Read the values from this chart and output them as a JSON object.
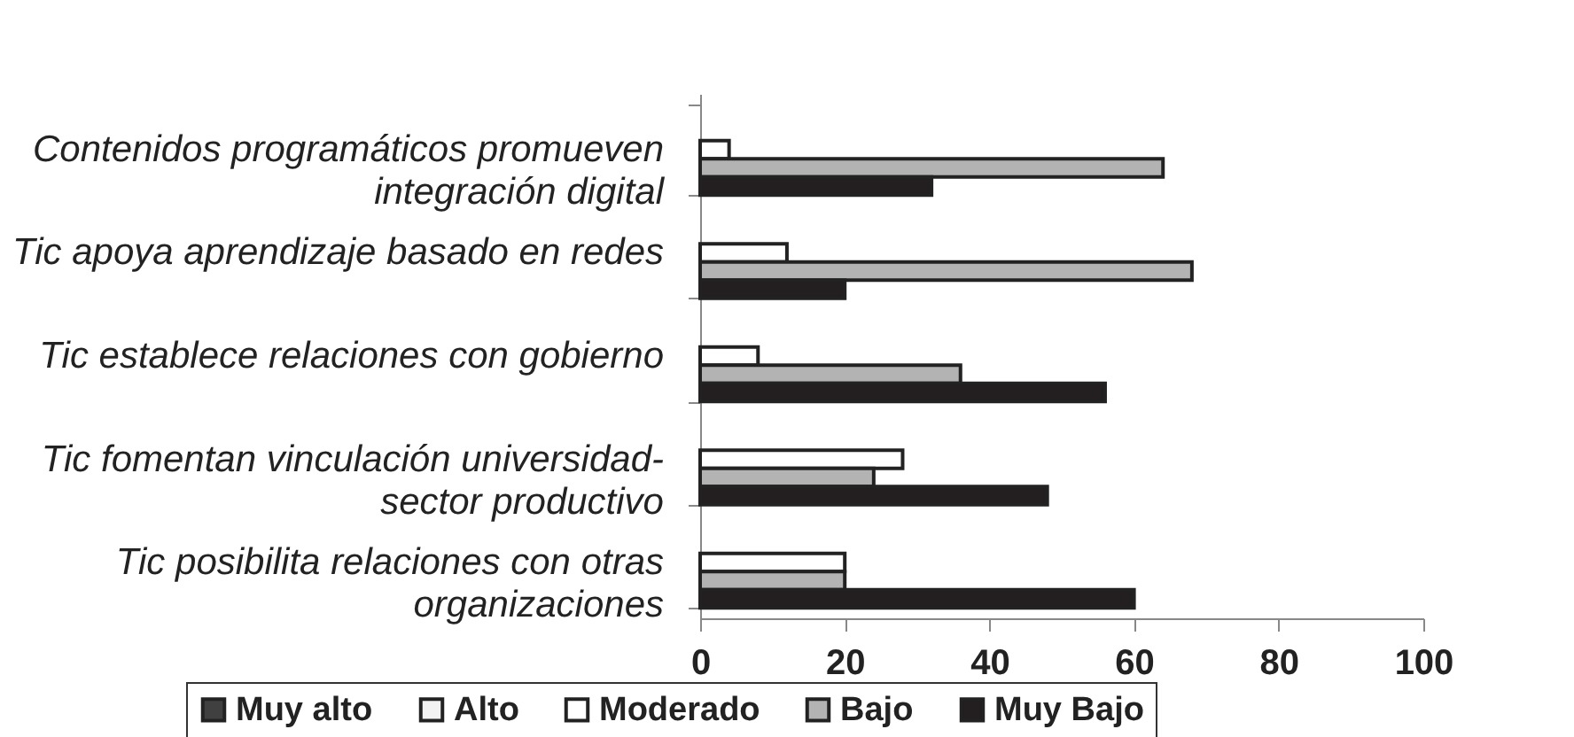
{
  "chart_data": {
    "type": "bar",
    "orientation": "horizontal",
    "categories": [
      "Contenidos programáticos promueven integración digital",
      "Tic apoya aprendizaje basado en redes",
      "Tic establece relaciones con gobierno",
      "Tic fomentan vinculación universidad-sector productivo",
      "Tic posibilita relaciones con otras organizaciones"
    ],
    "series": [
      {
        "name": "Muy alto",
        "color": "#404040",
        "values": [
          0,
          0,
          0,
          0,
          0
        ]
      },
      {
        "name": "Alto",
        "color": "#f2f2f2",
        "values": [
          0,
          0,
          0,
          0,
          0
        ]
      },
      {
        "name": "Moderado",
        "color": "#ffffff",
        "values": [
          4,
          12,
          8,
          28,
          20
        ]
      },
      {
        "name": "Bajo",
        "color": "#b3b3b3",
        "values": [
          64,
          68,
          36,
          24,
          20
        ]
      },
      {
        "name": "Muy Bajo",
        "color": "#231f20",
        "values": [
          32,
          20,
          56,
          48,
          60
        ]
      }
    ],
    "xlim": [
      0,
      100
    ],
    "xticks": [
      0,
      20,
      40,
      60,
      80,
      100
    ],
    "grid": false,
    "legend": "bottom"
  }
}
